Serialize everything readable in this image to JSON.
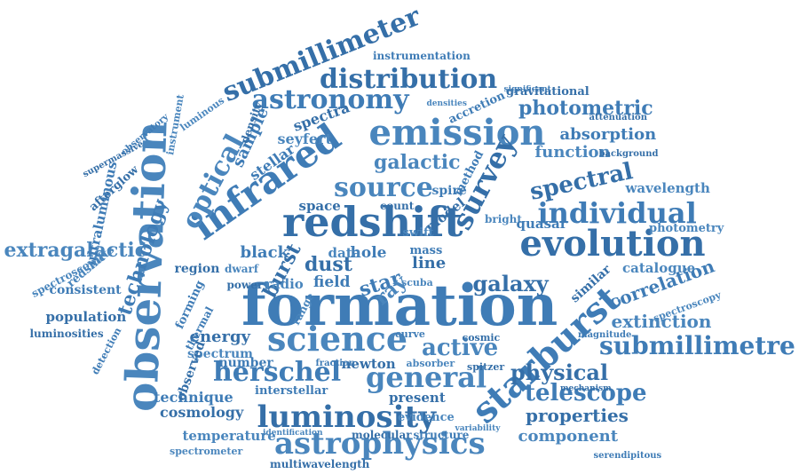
{
  "colors": {
    "word": "#3f7cb6",
    "background": "#ffffff"
  },
  "words": [
    "formation",
    "observation",
    "redshift",
    "infrared",
    "science",
    "evolution",
    "starburst",
    "emission",
    "luminosity",
    "individual",
    "astrophysics",
    "submillimeter",
    "submillimetre",
    "general",
    "survey",
    "herschel",
    "source",
    "distribution",
    "astronomy",
    "optical",
    "spectral",
    "telescope",
    "active",
    "physical",
    "technology",
    "extragalactic",
    "galaxy",
    "photometric",
    "galactic",
    "properties",
    "correlation",
    "extinction",
    "dust",
    "star",
    "component",
    "cosmology",
    "absorption",
    "function",
    "energy",
    "technique",
    "temperature",
    "population",
    "sample",
    "wavelength",
    "burst",
    "black",
    "catalogue",
    "present",
    "interstellar",
    "spectrum",
    "line",
    "quasar",
    "photometry",
    "gravitational",
    "stellar",
    "seyfert",
    "spectra",
    "field",
    "radio",
    "space",
    "hole",
    "data",
    "model",
    "spire",
    "swift",
    "newton",
    "number",
    "evidence",
    "observed",
    "consistent",
    "redshifts",
    "afterglow",
    "ultraluminous",
    "spectroscopic",
    "luminosities",
    "detection",
    "instrument",
    "supermassive",
    "observatory",
    "luminous",
    "density",
    "accretion",
    "spectrometer",
    "multiwavelength",
    "instrumentation",
    "identification",
    "molecular",
    "structure",
    "absorber",
    "similar",
    "mass",
    "range",
    "region",
    "forming",
    "dwarf",
    "power",
    "thermal",
    "bright",
    "cosmic",
    "curve",
    "ray",
    "background",
    "significant",
    "densities",
    "attenuation",
    "magnitude",
    "spectroscopy",
    "mechanism",
    "serendipitous",
    "variability",
    "spitzer",
    "method",
    "scuba",
    "count",
    "fraction"
  ]
}
